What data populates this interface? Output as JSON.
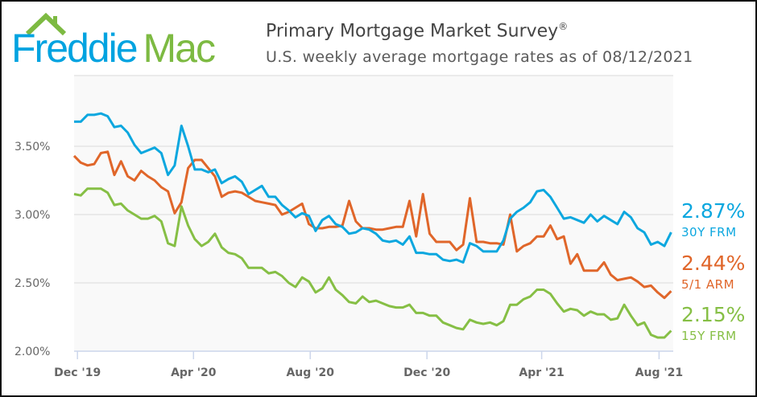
{
  "header": {
    "logo_left": "Freddie",
    "logo_right": "Mac",
    "title": "Primary Mortgage Market Survey",
    "title_mark": "®",
    "subtitle": "U.S. weekly average mortgage rates as of 08/12/2021"
  },
  "colors": {
    "frm30": "#0ca7df",
    "arm51": "#e0662a",
    "frm15": "#86bf45",
    "logo_blue": "#00a3e0",
    "logo_green": "#7dba42"
  },
  "chart_data": {
    "type": "line",
    "title": "Primary Mortgage Market Survey",
    "subtitle": "U.S. weekly average mortgage rates as of 08/12/2021",
    "xlabel": "",
    "ylabel": "",
    "x_unit": "week index (weekly, Dec 2019 to 08/12/2021)",
    "ylim": [
      2.0,
      4.0
    ],
    "grid": true,
    "y_ticks": [
      {
        "value": 2.0,
        "label": "2.00%"
      },
      {
        "value": 2.5,
        "label": "2.50%"
      },
      {
        "value": 3.0,
        "label": "3.00%"
      },
      {
        "value": 3.5,
        "label": "3.50%"
      }
    ],
    "x_ticks": [
      {
        "value": 0.5,
        "label": "Dec '19"
      },
      {
        "value": 17.8,
        "label": "Apr '20"
      },
      {
        "value": 35.2,
        "label": "Aug '20"
      },
      {
        "value": 52.6,
        "label": "Dec '20"
      },
      {
        "value": 69.7,
        "label": "Apr '21"
      },
      {
        "value": 87.2,
        "label": "Aug '21"
      }
    ],
    "series": [
      {
        "key": "frm30",
        "name": "30Y FRM",
        "last_label": "2.87%",
        "values": [
          3.68,
          3.68,
          3.73,
          3.73,
          3.74,
          3.72,
          3.64,
          3.65,
          3.6,
          3.51,
          3.45,
          3.47,
          3.49,
          3.45,
          3.29,
          3.36,
          3.65,
          3.5,
          3.33,
          3.33,
          3.31,
          3.33,
          3.23,
          3.26,
          3.28,
          3.24,
          3.15,
          3.18,
          3.21,
          3.13,
          3.13,
          3.07,
          3.03,
          2.98,
          3.01,
          2.99,
          2.88,
          2.96,
          2.99,
          2.93,
          2.91,
          2.86,
          2.87,
          2.9,
          2.89,
          2.86,
          2.81,
          2.8,
          2.81,
          2.78,
          2.84,
          2.72,
          2.72,
          2.71,
          2.71,
          2.67,
          2.66,
          2.67,
          2.65,
          2.79,
          2.77,
          2.73,
          2.73,
          2.73,
          2.81,
          2.97,
          3.02,
          3.05,
          3.09,
          3.17,
          3.18,
          3.13,
          3.05,
          2.97,
          2.98,
          2.96,
          2.94,
          3.0,
          2.95,
          2.99,
          2.96,
          2.93,
          3.02,
          2.98,
          2.9,
          2.87,
          2.78,
          2.8,
          2.77,
          2.87
        ]
      },
      {
        "key": "arm51",
        "name": "5/1 ARM",
        "last_label": "2.44%",
        "values": [
          3.43,
          3.38,
          3.36,
          3.37,
          3.45,
          3.46,
          3.29,
          3.39,
          3.28,
          3.25,
          3.32,
          3.28,
          3.25,
          3.2,
          3.17,
          3.01,
          3.09,
          3.34,
          3.4,
          3.4,
          3.34,
          3.28,
          3.13,
          3.16,
          3.17,
          3.16,
          3.13,
          3.1,
          3.09,
          3.08,
          3.07,
          3.0,
          3.02,
          3.05,
          3.08,
          2.93,
          2.9,
          2.9,
          2.91,
          2.91,
          2.92,
          3.1,
          2.95,
          2.9,
          2.9,
          2.89,
          2.89,
          2.9,
          2.91,
          2.91,
          3.1,
          2.84,
          3.15,
          2.86,
          2.8,
          2.8,
          2.8,
          2.74,
          2.78,
          3.12,
          2.8,
          2.8,
          2.79,
          2.79,
          2.78,
          3.0,
          2.73,
          2.77,
          2.79,
          2.84,
          2.84,
          2.92,
          2.82,
          2.84,
          2.64,
          2.71,
          2.59,
          2.59,
          2.59,
          2.65,
          2.56,
          2.52,
          2.53,
          2.54,
          2.51,
          2.47,
          2.48,
          2.43,
          2.39,
          2.44
        ]
      },
      {
        "key": "frm15",
        "name": "15Y FRM",
        "last_label": "2.15%",
        "values": [
          3.15,
          3.14,
          3.19,
          3.19,
          3.19,
          3.16,
          3.07,
          3.08,
          3.03,
          3.0,
          2.97,
          2.97,
          2.99,
          2.95,
          2.79,
          2.77,
          3.06,
          2.92,
          2.82,
          2.77,
          2.8,
          2.86,
          2.76,
          2.72,
          2.71,
          2.68,
          2.61,
          2.61,
          2.61,
          2.57,
          2.58,
          2.55,
          2.5,
          2.47,
          2.54,
          2.51,
          2.43,
          2.46,
          2.54,
          2.45,
          2.41,
          2.36,
          2.35,
          2.4,
          2.36,
          2.37,
          2.35,
          2.33,
          2.32,
          2.32,
          2.34,
          2.28,
          2.28,
          2.26,
          2.26,
          2.21,
          2.19,
          2.17,
          2.16,
          2.23,
          2.21,
          2.2,
          2.21,
          2.19,
          2.22,
          2.34,
          2.34,
          2.38,
          2.4,
          2.45,
          2.45,
          2.42,
          2.35,
          2.29,
          2.31,
          2.3,
          2.26,
          2.29,
          2.27,
          2.27,
          2.23,
          2.24,
          2.34,
          2.26,
          2.19,
          2.21,
          2.12,
          2.1,
          2.1,
          2.15
        ]
      }
    ]
  }
}
